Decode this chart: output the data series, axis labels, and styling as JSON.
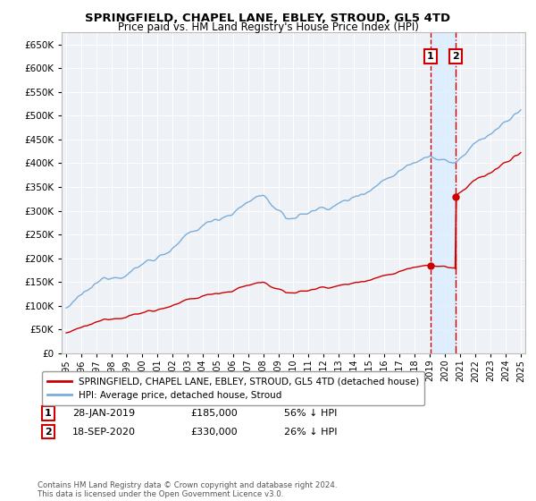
{
  "title": "SPRINGFIELD, CHAPEL LANE, EBLEY, STROUD, GL5 4TD",
  "subtitle": "Price paid vs. HM Land Registry's House Price Index (HPI)",
  "legend_line1": "SPRINGFIELD, CHAPEL LANE, EBLEY, STROUD, GL5 4TD (detached house)",
  "legend_line2": "HPI: Average price, detached house, Stroud",
  "transaction1_date": "28-JAN-2019",
  "transaction1_price": 185000,
  "transaction1_hpi_diff": "56% ↓ HPI",
  "transaction2_date": "18-SEP-2020",
  "transaction2_price": 330000,
  "transaction2_hpi_diff": "26% ↓ HPI",
  "copyright": "Contains HM Land Registry data © Crown copyright and database right 2024.\nThis data is licensed under the Open Government Licence v3.0.",
  "hpi_color": "#7aaddb",
  "price_color": "#cc0000",
  "vline1_color": "#cc0000",
  "vline2_color": "#cc0000",
  "shade_color": "#ddeeff",
  "background_color": "#eef2f7",
  "grid_color": "#ffffff",
  "ylim": [
    0,
    675000
  ],
  "xlabel_start": 1995,
  "xlabel_end": 2025
}
